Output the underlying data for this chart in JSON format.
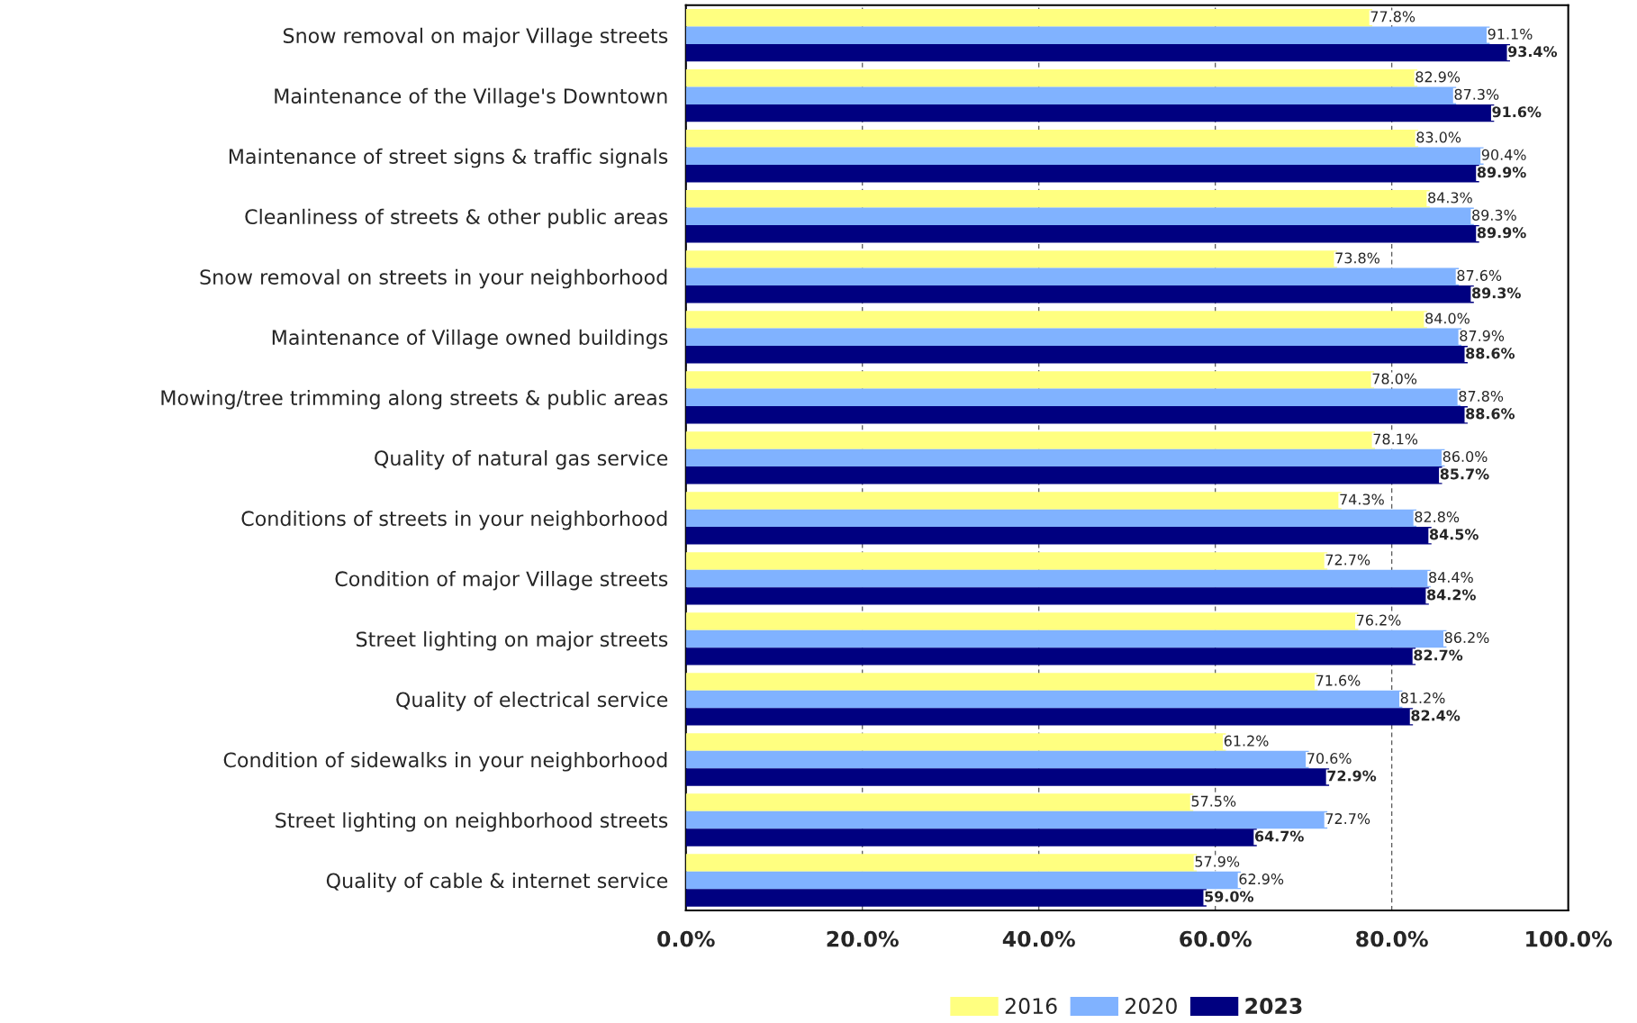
{
  "chart_data": {
    "type": "bar",
    "orientation": "horizontal",
    "categories": [
      "Snow removal on major Village streets",
      "Maintenance of the Village's Downtown",
      "Maintenance of street signs & traffic signals",
      "Cleanliness of streets & other public areas",
      "Snow removal on streets in your neighborhood",
      "Maintenance of Village owned buildings",
      "Mowing/tree trimming along streets & public areas",
      "Quality of natural gas service",
      "Conditions of streets in your neighborhood",
      "Condition of major Village streets",
      "Street lighting on major streets",
      "Quality of electrical service",
      "Condition of sidewalks in your neighborhood",
      "Street lighting on neighborhood streets",
      "Quality of cable & internet service"
    ],
    "series": [
      {
        "name": "2016",
        "color": "#ffff80",
        "values": [
          77.8,
          82.9,
          83.0,
          84.3,
          73.8,
          84.0,
          78.0,
          78.1,
          74.3,
          72.7,
          76.2,
          71.6,
          61.2,
          57.5,
          57.9
        ],
        "value_labels": [
          "77.8%",
          "82.9%",
          "83.0%",
          "84.3%",
          "73.8%",
          "84.0%",
          "78.0%",
          "78.1%",
          "74.3%",
          "72.7%",
          "76.2%",
          "71.6%",
          "61.2%",
          "57.5%",
          "57.9%"
        ]
      },
      {
        "name": "2020",
        "color": "#80b2ff",
        "values": [
          91.1,
          87.3,
          90.4,
          89.3,
          87.6,
          87.9,
          87.8,
          86.0,
          82.8,
          84.4,
          86.2,
          81.2,
          70.6,
          72.7,
          62.9
        ],
        "value_labels": [
          "91.1%",
          "87.3%",
          "90.4%",
          "89.3%",
          "87.6%",
          "87.9%",
          "87.8%",
          "86.0%",
          "82.8%",
          "84.4%",
          "86.2%",
          "81.2%",
          "70.6%",
          "72.7%",
          "62.9%"
        ]
      },
      {
        "name": "2023",
        "color": "#000080",
        "values": [
          93.4,
          91.6,
          89.9,
          89.9,
          89.3,
          88.6,
          88.6,
          85.7,
          84.5,
          84.2,
          82.7,
          82.4,
          72.9,
          64.7,
          59.0
        ],
        "value_labels": [
          "93.4%",
          "91.6%",
          "89.9%",
          "89.9%",
          "89.3%",
          "88.6%",
          "88.6%",
          "85.7%",
          "84.5%",
          "84.2%",
          "82.7%",
          "82.4%",
          "72.9%",
          "64.7%",
          "59.0%"
        ]
      }
    ],
    "xlim": [
      0,
      100
    ],
    "xticks": [
      {
        "value": 0,
        "label": "0.0%"
      },
      {
        "value": 20,
        "label": "20.0%"
      },
      {
        "value": 40,
        "label": "40.0%"
      },
      {
        "value": 60,
        "label": "60.0%"
      },
      {
        "value": 80,
        "label": "80.0%"
      },
      {
        "value": 100,
        "label": "100.0%"
      }
    ],
    "grid": "x",
    "legend": "bottom"
  }
}
